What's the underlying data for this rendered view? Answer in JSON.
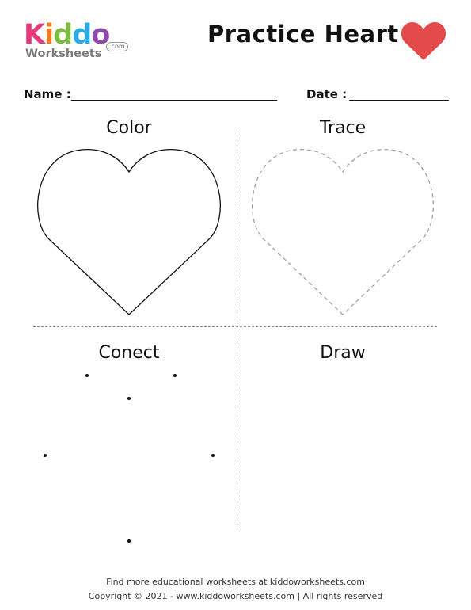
{
  "logo": {
    "brand": "Kiddo",
    "letters": [
      {
        "char": "K",
        "color": "#e5397a"
      },
      {
        "char": "i",
        "color": "#f47b20"
      },
      {
        "char": "d",
        "color": "#7dbb42"
      },
      {
        "char": "d",
        "color": "#29abe2"
      },
      {
        "char": "o",
        "color": "#8e4aa6"
      }
    ],
    "sub": "Worksheets",
    "domain": ".com"
  },
  "header": {
    "title": "Practice Heart",
    "heart_color": "#e34a4a"
  },
  "fields": {
    "name_label": "Name :",
    "date_label": "Date :"
  },
  "sections": {
    "color": "Color",
    "trace": "Trace",
    "connect": "Conect",
    "draw": "Draw"
  },
  "footer": {
    "line1": "Find more educational worksheets at kiddoworksheets.com",
    "line2": "Copyright © 2021 - www.kiddoworksheets.com  |  All rights reserved"
  }
}
